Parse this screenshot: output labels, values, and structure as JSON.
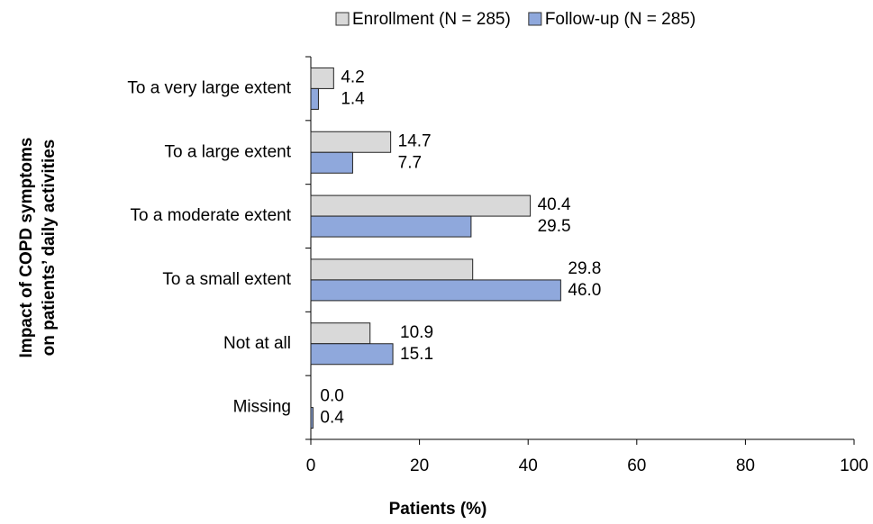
{
  "chart_data": {
    "type": "hbar",
    "categories": [
      "To a very large extent",
      "To a large extent",
      "To a moderate extent",
      "To a small extent",
      "Not at all",
      "Missing"
    ],
    "series": [
      {
        "name": "Enrollment (N = 285)",
        "color": "#d9d9d9",
        "values": [
          4.2,
          14.7,
          40.4,
          29.8,
          10.9,
          0.0
        ],
        "value_labels": [
          "4.2",
          "14.7",
          "40.4",
          "29.8",
          "10.9",
          "0.0"
        ]
      },
      {
        "name": "Follow-up (N = 285)",
        "color": "#8fa8dc",
        "values": [
          1.4,
          7.7,
          29.5,
          46.0,
          15.1,
          0.4
        ],
        "value_labels": [
          "1.4",
          "7.7",
          "29.5",
          "46.0",
          "15.1",
          "0.4"
        ]
      }
    ],
    "xlabel": "Patients (%)",
    "ylabel": [
      "Impact of COPD symptoms",
      "on patients’ daily activities"
    ],
    "xlim": [
      0,
      100
    ],
    "xticks": [
      0,
      20,
      40,
      60,
      80,
      100
    ],
    "legend": "top"
  }
}
